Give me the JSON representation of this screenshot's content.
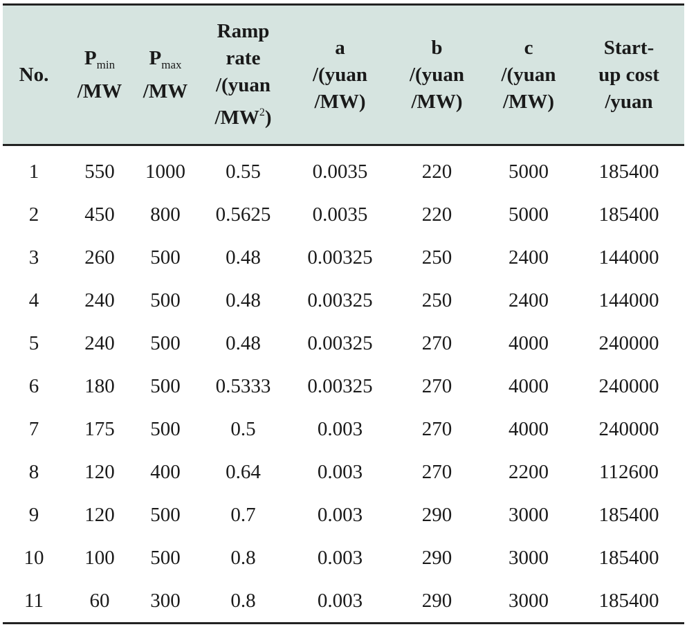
{
  "table": {
    "headers": {
      "no": "No.",
      "pmin": {
        "base": "P",
        "sub": "min",
        "unit": "/MW"
      },
      "pmax": {
        "base": "P",
        "sub": "max",
        "unit": "/MW"
      },
      "ramp": {
        "line1": "Ramp",
        "line2": "rate",
        "line3": "/(yuan",
        "line4_base": "/MW",
        "line4_sup": "2",
        "line4_end": ")"
      },
      "a": {
        "line1": "a",
        "line2": "/(yuan",
        "line3": "/MW)"
      },
      "b": {
        "line1": "b",
        "line2": "/(yuan",
        "line3": "/MW)"
      },
      "c": {
        "line1": "c",
        "line2": "/(yuan",
        "line3": "/MW)"
      },
      "startup": {
        "line1": "Start-",
        "line2": "up cost",
        "line3": "/yuan"
      }
    },
    "rows": [
      [
        "1",
        "550",
        "1000",
        "0.55",
        "0.0035",
        "220",
        "5000",
        "185400"
      ],
      [
        "2",
        "450",
        "800",
        "0.5625",
        "0.0035",
        "220",
        "5000",
        "185400"
      ],
      [
        "3",
        "260",
        "500",
        "0.48",
        "0.00325",
        "250",
        "2400",
        "144000"
      ],
      [
        "4",
        "240",
        "500",
        "0.48",
        "0.00325",
        "250",
        "2400",
        "144000"
      ],
      [
        "5",
        "240",
        "500",
        "0.48",
        "0.00325",
        "270",
        "4000",
        "240000"
      ],
      [
        "6",
        "180",
        "500",
        "0.5333",
        "0.00325",
        "270",
        "4000",
        "240000"
      ],
      [
        "7",
        "175",
        "500",
        "0.5",
        "0.003",
        "270",
        "4000",
        "240000"
      ],
      [
        "8",
        "120",
        "400",
        "0.64",
        "0.003",
        "270",
        "2200",
        "112600"
      ],
      [
        "9",
        "120",
        "500",
        "0.7",
        "0.003",
        "290",
        "3000",
        "185400"
      ],
      [
        "10",
        "100",
        "500",
        "0.8",
        "0.003",
        "290",
        "3000",
        "185400"
      ],
      [
        "11",
        "60",
        "300",
        "0.8",
        "0.003",
        "290",
        "3000",
        "185400"
      ]
    ]
  },
  "colors": {
    "header_bg": "#d6e4e0",
    "rule": "#222222",
    "text": "#1a1a1a"
  }
}
